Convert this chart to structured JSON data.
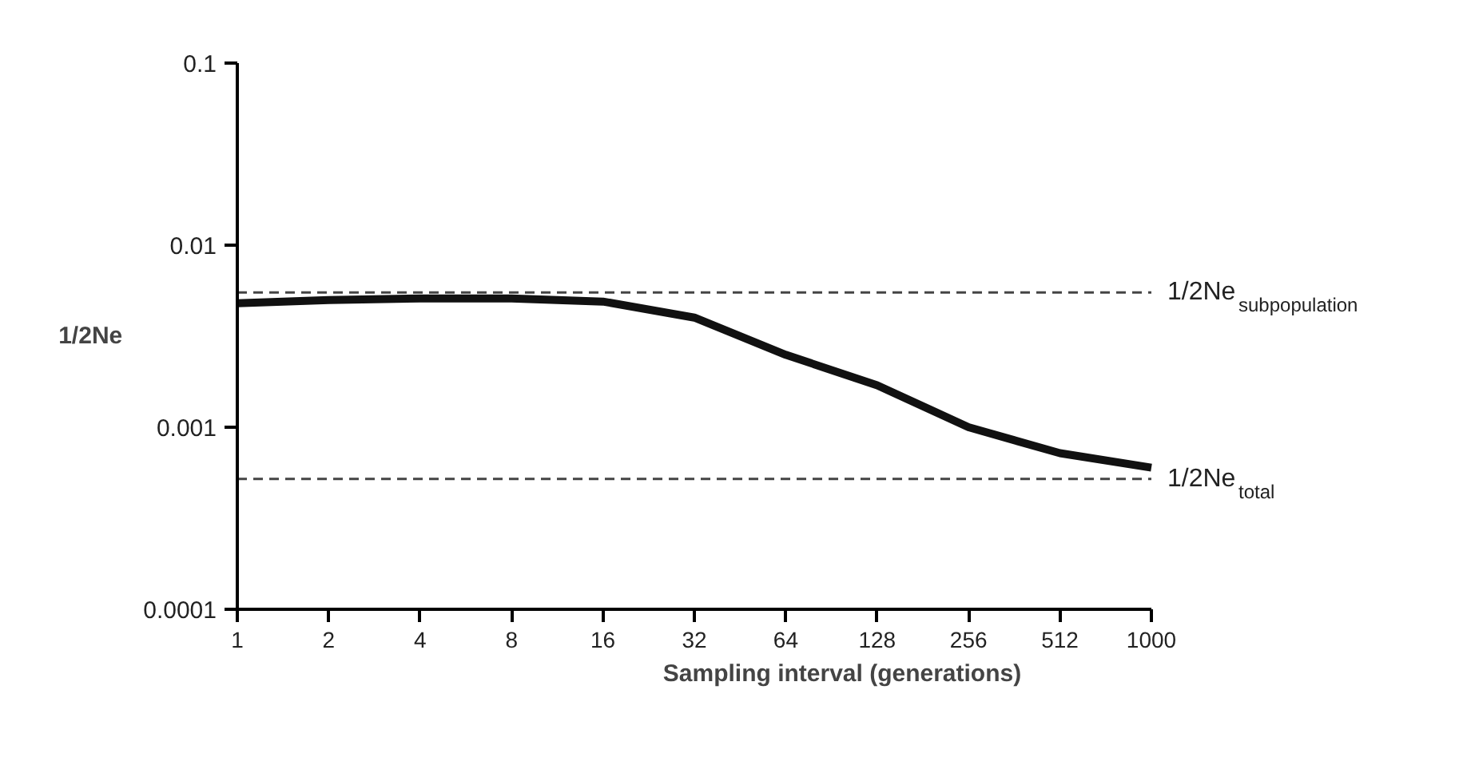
{
  "chart_data": {
    "type": "line",
    "xlabel": "Sampling interval (generations)",
    "ylabel": "1/2Ne",
    "categories": [
      "1",
      "2",
      "4",
      "8",
      "16",
      "32",
      "64",
      "128",
      "256",
      "512",
      "1000"
    ],
    "series": [
      {
        "color": "#111111",
        "values": [
          0.0048,
          0.005,
          0.0051,
          0.0051,
          0.0049,
          0.004,
          0.0025,
          0.0017,
          0.001,
          0.00072,
          0.0006
        ]
      }
    ],
    "log": "y",
    "ylim": [
      0.0001,
      0.1
    ],
    "yticks": [
      0.0001,
      0.001,
      0.01,
      0.1
    ],
    "grid": false,
    "marker": "none",
    "line_style": "solid",
    "ref_lines": [
      {
        "axis": "y",
        "value": 0.0055,
        "label": "1/2Ne$_{subpopulation}$",
        "line_style": "dashed",
        "color": "#444444"
      },
      {
        "axis": "y",
        "value": 0.00052,
        "label": "1/2Ne$_{total}$",
        "line_style": "dashed",
        "color": "#444444"
      }
    ]
  }
}
